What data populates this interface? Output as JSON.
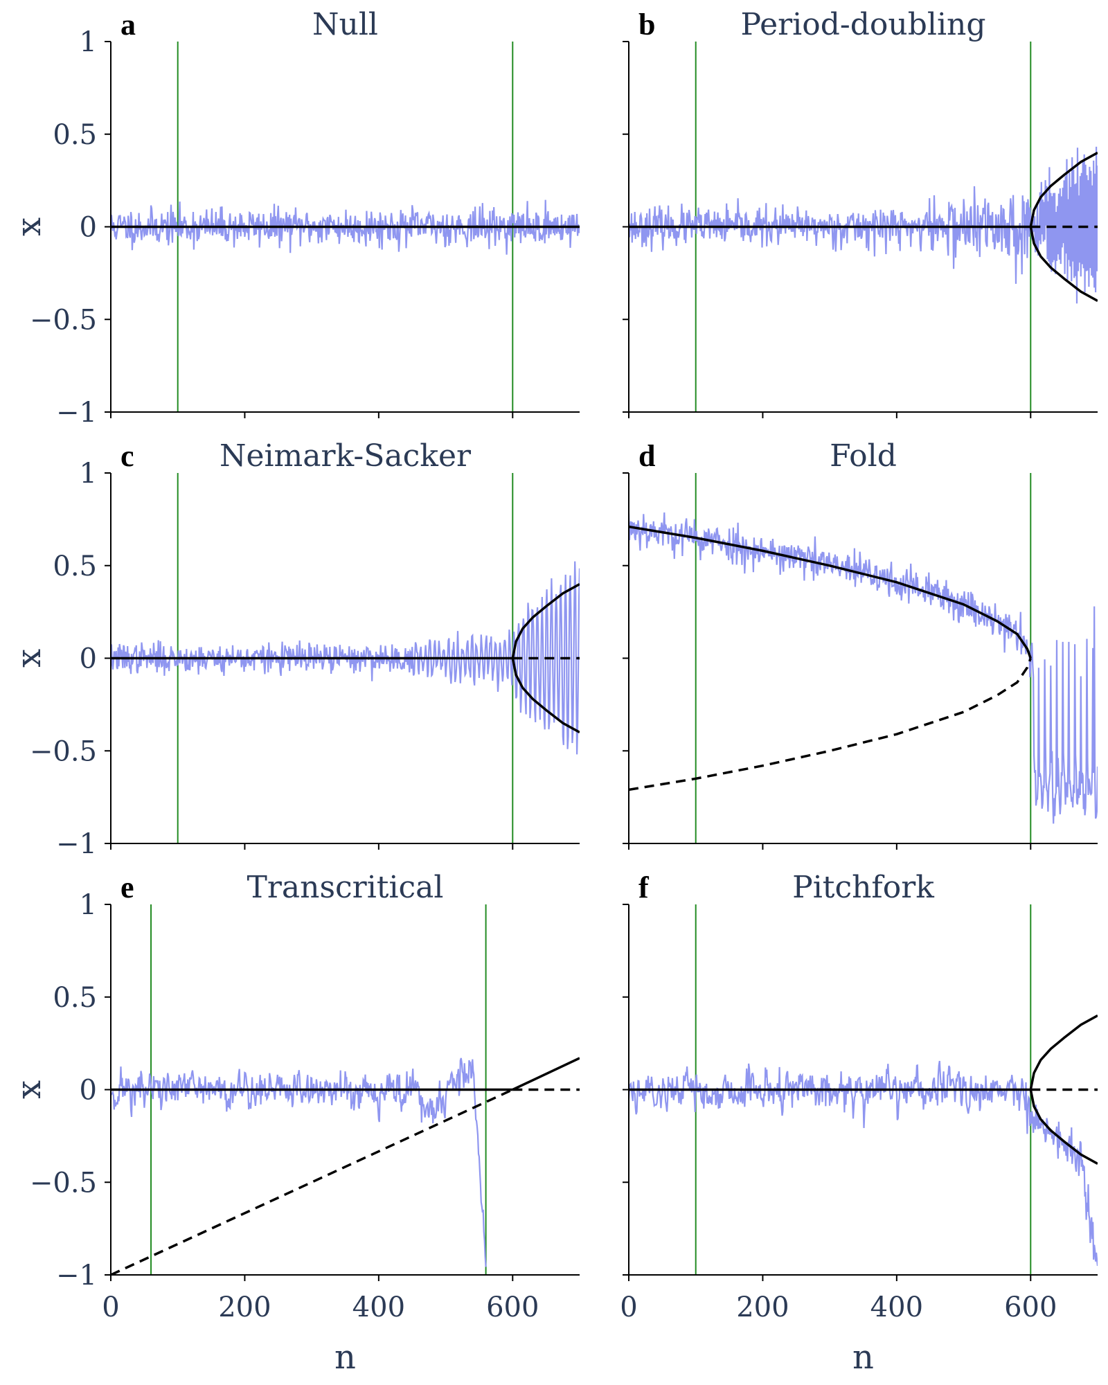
{
  "figure": {
    "style": {
      "noise_color": "#8f96f0",
      "branch_color": "#000000",
      "marker_color": "#228b22",
      "text_color": "#2b3a55"
    },
    "x_label": "n",
    "y_label": "x"
  },
  "chart_data": [
    {
      "type": "line",
      "letter": "a",
      "title": "Null",
      "xlim": [
        0,
        700
      ],
      "ylim": [
        -1,
        1
      ],
      "xticks": [
        "0",
        "200",
        "400",
        "600"
      ],
      "yticks": [
        "−1",
        "−0.5",
        "0",
        "0.5",
        "1"
      ],
      "show_xtick_labels": false,
      "show_ytick_labels": true,
      "show_ylabel": true,
      "show_xlabel": false,
      "markers": [
        100,
        600
      ],
      "noise": {
        "model": "const",
        "sigma": 0.05,
        "seed": 11,
        "n": [
          0,
          700
        ]
      },
      "branches": [
        {
          "style": "solid",
          "points": [
            [
              0,
              0
            ],
            [
              700,
              0
            ]
          ]
        }
      ]
    },
    {
      "type": "line",
      "letter": "b",
      "title": "Period-doubling",
      "xlim": [
        0,
        700
      ],
      "ylim": [
        -1,
        1
      ],
      "xticks": [
        "0",
        "200",
        "400",
        "600"
      ],
      "yticks": [
        "−1",
        "−0.5",
        "0",
        "0.5",
        "1"
      ],
      "show_xtick_labels": false,
      "show_ytick_labels": false,
      "show_ylabel": false,
      "show_xlabel": false,
      "markers": [
        100,
        600
      ],
      "noise": {
        "model": "period_doubling",
        "sigma": 0.05,
        "seed": 23,
        "n": [
          0,
          700
        ]
      },
      "branches": [
        {
          "style": "solid",
          "points": [
            [
              0,
              0
            ],
            [
              600,
              0
            ]
          ]
        },
        {
          "style": "dashed",
          "points": [
            [
              600,
              0
            ],
            [
              700,
              0
            ]
          ]
        },
        {
          "style": "solid",
          "points": [
            [
              600,
              0
            ],
            [
              605,
              0.09
            ],
            [
              615,
              0.16
            ],
            [
              630,
              0.22
            ],
            [
              650,
              0.28
            ],
            [
              675,
              0.35
            ],
            [
              700,
              0.4
            ]
          ]
        },
        {
          "style": "solid",
          "points": [
            [
              600,
              0
            ],
            [
              605,
              -0.09
            ],
            [
              615,
              -0.16
            ],
            [
              630,
              -0.22
            ],
            [
              650,
              -0.28
            ],
            [
              675,
              -0.35
            ],
            [
              700,
              -0.4
            ]
          ]
        }
      ]
    },
    {
      "type": "line",
      "letter": "c",
      "title": "Neimark-Sacker",
      "xlim": [
        0,
        700
      ],
      "ylim": [
        -1,
        1
      ],
      "xticks": [
        "0",
        "200",
        "400",
        "600"
      ],
      "yticks": [
        "−1",
        "−0.5",
        "0",
        "0.5",
        "1"
      ],
      "show_xtick_labels": false,
      "show_ytick_labels": true,
      "show_ylabel": true,
      "show_xlabel": false,
      "markers": [
        100,
        600
      ],
      "noise": {
        "model": "neimark_sacker",
        "sigma": 0.04,
        "seed": 37,
        "n": [
          0,
          700
        ]
      },
      "branches": [
        {
          "style": "solid",
          "points": [
            [
              0,
              0
            ],
            [
              600,
              0
            ]
          ]
        },
        {
          "style": "dashed",
          "points": [
            [
              600,
              0
            ],
            [
              700,
              0
            ]
          ]
        },
        {
          "style": "solid",
          "points": [
            [
              600,
              0
            ],
            [
              605,
              0.09
            ],
            [
              615,
              0.16
            ],
            [
              630,
              0.22
            ],
            [
              650,
              0.28
            ],
            [
              675,
              0.35
            ],
            [
              700,
              0.4
            ]
          ]
        },
        {
          "style": "solid",
          "points": [
            [
              600,
              0
            ],
            [
              605,
              -0.09
            ],
            [
              615,
              -0.16
            ],
            [
              630,
              -0.22
            ],
            [
              650,
              -0.28
            ],
            [
              675,
              -0.35
            ],
            [
              700,
              -0.4
            ]
          ]
        }
      ]
    },
    {
      "type": "line",
      "letter": "d",
      "title": "Fold",
      "xlim": [
        0,
        700
      ],
      "ylim": [
        -1,
        1
      ],
      "xticks": [
        "0",
        "200",
        "400",
        "600"
      ],
      "yticks": [
        "−1",
        "−0.5",
        "0",
        "0.5",
        "1"
      ],
      "show_xtick_labels": false,
      "show_ytick_labels": false,
      "show_ylabel": false,
      "show_xlabel": false,
      "markers": [
        100,
        600
      ],
      "noise": {
        "model": "fold",
        "sigma": 0.05,
        "seed": 53,
        "n": [
          0,
          700
        ]
      },
      "branches": [
        {
          "style": "solid",
          "points": [
            [
              0,
              0.71
            ],
            [
              100,
              0.65
            ],
            [
              200,
              0.58
            ],
            [
              300,
              0.5
            ],
            [
              400,
              0.41
            ],
            [
              500,
              0.29
            ],
            [
              550,
              0.2
            ],
            [
              580,
              0.13
            ],
            [
              595,
              0.05
            ],
            [
              600,
              0
            ]
          ]
        },
        {
          "style": "dashed",
          "points": [
            [
              0,
              -0.71
            ],
            [
              100,
              -0.65
            ],
            [
              200,
              -0.58
            ],
            [
              300,
              -0.5
            ],
            [
              400,
              -0.41
            ],
            [
              500,
              -0.29
            ],
            [
              550,
              -0.2
            ],
            [
              580,
              -0.13
            ],
            [
              595,
              -0.05
            ],
            [
              600,
              0
            ]
          ]
        }
      ]
    },
    {
      "type": "line",
      "letter": "e",
      "title": "Transcritical",
      "xlim": [
        0,
        700
      ],
      "ylim": [
        -1,
        1
      ],
      "xticks": [
        "0",
        "200",
        "400",
        "600"
      ],
      "yticks": [
        "−1",
        "−0.5",
        "0",
        "0.5",
        "1"
      ],
      "show_xtick_labels": true,
      "show_ytick_labels": true,
      "show_ylabel": true,
      "show_xlabel": true,
      "markers": [
        60,
        560
      ],
      "noise": {
        "model": "transcritical",
        "sigma": 0.05,
        "seed": 71,
        "n": [
          0,
          560
        ]
      },
      "branches": [
        {
          "style": "solid",
          "points": [
            [
              0,
              0
            ],
            [
              600,
              0
            ]
          ]
        },
        {
          "style": "dashed",
          "points": [
            [
              600,
              0
            ],
            [
              700,
              0
            ]
          ]
        },
        {
          "style": "dashed",
          "points": [
            [
              0,
              -1
            ],
            [
              600,
              0
            ]
          ]
        },
        {
          "style": "solid",
          "points": [
            [
              600,
              0
            ],
            [
              700,
              0.17
            ]
          ]
        }
      ]
    },
    {
      "type": "line",
      "letter": "f",
      "title": "Pitchfork",
      "xlim": [
        0,
        700
      ],
      "ylim": [
        -1,
        1
      ],
      "xticks": [
        "0",
        "200",
        "400",
        "600"
      ],
      "yticks": [
        "−1",
        "−0.5",
        "0",
        "0.5",
        "1"
      ],
      "show_xtick_labels": true,
      "show_ytick_labels": false,
      "show_ylabel": false,
      "show_xlabel": true,
      "markers": [
        100,
        600
      ],
      "noise": {
        "model": "pitchfork",
        "sigma": 0.05,
        "seed": 89,
        "n": [
          0,
          700
        ]
      },
      "branches": [
        {
          "style": "solid",
          "points": [
            [
              0,
              0
            ],
            [
              600,
              0
            ]
          ]
        },
        {
          "style": "dashed",
          "points": [
            [
              600,
              0
            ],
            [
              700,
              0
            ]
          ]
        },
        {
          "style": "solid",
          "points": [
            [
              600,
              0
            ],
            [
              605,
              0.09
            ],
            [
              615,
              0.16
            ],
            [
              630,
              0.22
            ],
            [
              650,
              0.28
            ],
            [
              675,
              0.35
            ],
            [
              700,
              0.4
            ]
          ]
        },
        {
          "style": "solid",
          "points": [
            [
              600,
              0
            ],
            [
              605,
              -0.09
            ],
            [
              615,
              -0.16
            ],
            [
              630,
              -0.22
            ],
            [
              650,
              -0.28
            ],
            [
              675,
              -0.35
            ],
            [
              700,
              -0.4
            ]
          ]
        }
      ]
    }
  ]
}
